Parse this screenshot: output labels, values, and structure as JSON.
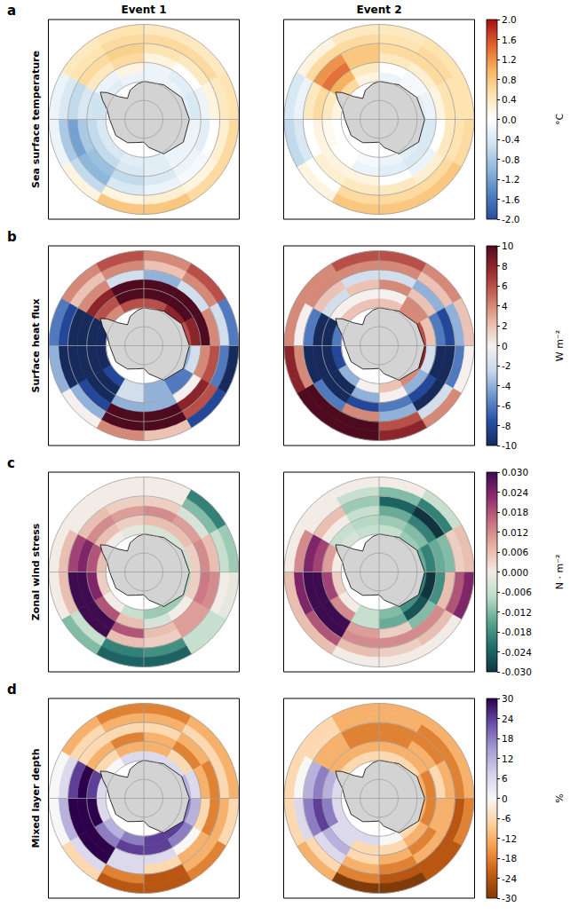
{
  "chart_data": {
    "type": "polar_heatmap",
    "grid": true,
    "columns": [
      "Event 1",
      "Event 2"
    ],
    "lon_edges": [
      0,
      30,
      60,
      90,
      120,
      150,
      180,
      210,
      240,
      270,
      300,
      330,
      360
    ],
    "lat_edges": [
      -70,
      -65,
      -60,
      -55,
      -50,
      -45,
      -40
    ],
    "rlim": [
      -90,
      -40
    ],
    "meridians": [
      0,
      90,
      180,
      270
    ],
    "parallels": [
      -80,
      -70,
      -60,
      -50,
      -40
    ],
    "rows": [
      {
        "letter": "a",
        "label": "Sea surface temperature",
        "unit": "°C",
        "colorbar": {
          "range": [
            -2,
            2
          ],
          "ticks": [
            {
              "value": -2,
              "label": "-2.0"
            },
            -1.6,
            -1.2,
            -0.8,
            -0.4,
            {
              "value": 0,
              "label": "0.0"
            },
            0.4,
            0.8,
            1.2,
            1.6,
            {
              "value": 2,
              "label": "2.0"
            }
          ],
          "colors": [
            "#2b4c9c",
            "#4f80c0",
            "#8fb7dc",
            "#cfe3f0",
            "#ffffff",
            "#fde4b0",
            "#f6b35e",
            "#e0622e",
            "#a50f15"
          ]
        },
        "cells": [
          [
            [
              -0.2,
              -0.2,
              -0.3,
              -0.2,
              -0.2,
              -0.3,
              -0.3,
              -0.4,
              -0.4,
              -0.5,
              -0.3,
              -0.2
            ],
            [
              -0.2,
              -0.3,
              -0.4,
              -0.2,
              -0.2,
              -0.3,
              -0.4,
              -0.6,
              -0.6,
              -0.5,
              -0.2,
              0.2
            ],
            [
              0.2,
              0.0,
              -0.2,
              -0.3,
              -0.2,
              -0.4,
              -0.6,
              -0.9,
              -0.8,
              -0.4,
              0.4,
              0.6
            ],
            [
              0.5,
              0.4,
              0.2,
              0.0,
              -0.1,
              -0.2,
              -0.4,
              -1.0,
              -1.2,
              -0.6,
              0.6,
              0.7
            ],
            [
              0.6,
              0.6,
              0.4,
              0.3,
              0.2,
              0.3,
              0.2,
              -0.6,
              -0.8,
              -0.4,
              0.5,
              0.6
            ],
            [
              0.4,
              0.4,
              0.5,
              0.6,
              0.6,
              0.8,
              0.8,
              0.2,
              -0.2,
              -0.2,
              0.4,
              0.5
            ]
          ],
          [
            [
              -0.2,
              -0.1,
              -0.3,
              -0.4,
              -0.3,
              -0.2,
              -0.1,
              0.0,
              0.0,
              0.2,
              0.6,
              0.2
            ],
            [
              0.0,
              -0.1,
              -0.2,
              -0.4,
              -0.4,
              -0.3,
              -0.2,
              0.0,
              0.1,
              0.4,
              1.0,
              0.4
            ],
            [
              0.4,
              0.3,
              0.2,
              0.0,
              -0.2,
              0.0,
              0.2,
              0.2,
              0.2,
              0.6,
              1.4,
              0.8
            ],
            [
              0.6,
              0.6,
              0.5,
              0.4,
              0.3,
              0.4,
              0.4,
              0.3,
              0.0,
              0.4,
              1.2,
              0.8
            ],
            [
              0.5,
              0.6,
              0.5,
              0.5,
              0.6,
              0.6,
              0.6,
              0.0,
              -0.4,
              -0.2,
              0.6,
              0.6
            ],
            [
              0.4,
              0.5,
              0.5,
              0.6,
              0.8,
              0.8,
              0.8,
              0.2,
              -0.6,
              -0.4,
              0.2,
              0.4
            ]
          ]
        ]
      },
      {
        "letter": "b",
        "label": "Surface heat flux",
        "unit": "W m⁻²",
        "colorbar": {
          "range": [
            -10,
            10
          ],
          "ticks": [
            -10,
            -8,
            -6,
            -4,
            -2,
            0,
            2,
            4,
            6,
            8,
            10
          ],
          "colors": [
            "#172a5c",
            "#2650a8",
            "#6e96cc",
            "#c9d9ea",
            "#f5f0ee",
            "#e8b7a5",
            "#c96a5a",
            "#9a2a2e",
            "#4e0a1e"
          ]
        },
        "cells": [
          [
            [
              6,
              8,
              6,
              -4,
              -6,
              -4,
              -2,
              -8,
              -10,
              -10,
              4,
              6
            ],
            [
              10,
              10,
              8,
              -2,
              -6,
              -4,
              -2,
              -10,
              -10,
              -10,
              6,
              10
            ],
            [
              10,
              10,
              10,
              4,
              0,
              -4,
              -4,
              -10,
              -10,
              -10,
              8,
              10
            ],
            [
              -4,
              -2,
              4,
              6,
              8,
              10,
              10,
              -8,
              -10,
              -10,
              4,
              -2
            ],
            [
              2,
              4,
              -2,
              -6,
              6,
              10,
              10,
              -4,
              -10,
              -8,
              2,
              4
            ],
            [
              4,
              6,
              -6,
              -10,
              -8,
              2,
              4,
              0,
              -4,
              -6,
              4,
              6
            ]
          ],
          [
            [
              2,
              4,
              6,
              8,
              4,
              2,
              0,
              -4,
              -8,
              -6,
              2,
              2
            ],
            [
              0,
              4,
              2,
              -2,
              -4,
              0,
              -4,
              -10,
              -10,
              -10,
              0,
              0
            ],
            [
              4,
              2,
              -6,
              -10,
              -8,
              -6,
              -8,
              -10,
              -10,
              -10,
              -2,
              2
            ],
            [
              -2,
              -4,
              -8,
              -10,
              -10,
              -4,
              4,
              -6,
              -10,
              -6,
              2,
              -2
            ],
            [
              4,
              2,
              -4,
              -6,
              -2,
              6,
              10,
              10,
              4,
              0,
              4,
              4
            ],
            [
              6,
              4,
              2,
              0,
              4,
              8,
              10,
              10,
              8,
              4,
              4,
              6
            ]
          ]
        ]
      },
      {
        "letter": "c",
        "label": "Zonal wind stress",
        "unit": "N · m⁻²",
        "colorbar": {
          "range": [
            -0.03,
            0.03
          ],
          "ticks": [
            {
              "value": -0.03,
              "label": "-0.030"
            },
            -0.024,
            -0.018,
            -0.012,
            -0.006,
            {
              "value": 0,
              "label": "0.000"
            },
            0.006,
            0.012,
            0.018,
            0.024,
            {
              "value": 0.03,
              "label": "0.030"
            }
          ],
          "colors": [
            "#10353f",
            "#1f6f6b",
            "#5ba58f",
            "#bcdcc8",
            "#f3ece6",
            "#e7b4a4",
            "#c8707f",
            "#8e2c6e",
            "#3e0c4e"
          ]
        },
        "cells": [
          [
            [
              -0.004,
              -0.004,
              -0.006,
              -0.008,
              -0.01,
              -0.01,
              -0.006,
              0.0,
              0.004,
              0.006,
              0.0,
              -0.002
            ],
            [
              0.006,
              0.006,
              0.004,
              0.004,
              0.0,
              -0.004,
              0.006,
              0.018,
              0.024,
              0.018,
              0.006,
              0.004
            ],
            [
              0.012,
              0.01,
              0.012,
              0.014,
              0.01,
              0.006,
              0.018,
              0.03,
              0.03,
              0.024,
              0.012,
              0.01
            ],
            [
              0.004,
              -0.004,
              0.006,
              0.012,
              0.01,
              0.004,
              0.006,
              0.03,
              0.03,
              0.02,
              0.006,
              0.004
            ],
            [
              0.0,
              -0.012,
              -0.006,
              0.0,
              -0.006,
              -0.018,
              -0.02,
              -0.006,
              0.006,
              0.006,
              0.0,
              0.0
            ],
            [
              0.0,
              -0.02,
              -0.01,
              -0.002,
              -0.006,
              -0.024,
              -0.024,
              -0.012,
              0.0,
              0.0,
              0.0,
              0.0
            ]
          ],
          [
            [
              -0.006,
              -0.01,
              -0.014,
              -0.02,
              -0.018,
              -0.012,
              -0.006,
              0.0,
              0.004,
              0.0,
              -0.004,
              -0.006
            ],
            [
              -0.01,
              -0.012,
              -0.02,
              -0.03,
              -0.026,
              -0.014,
              -0.006,
              0.012,
              0.02,
              0.01,
              -0.006,
              -0.008
            ],
            [
              -0.014,
              -0.02,
              -0.014,
              -0.018,
              -0.012,
              0.004,
              0.01,
              0.03,
              0.03,
              0.02,
              0.0,
              -0.006
            ],
            [
              -0.024,
              -0.03,
              -0.012,
              0.006,
              0.012,
              0.012,
              0.012,
              0.03,
              0.03,
              0.024,
              0.006,
              -0.01
            ],
            [
              -0.012,
              -0.02,
              0.004,
              0.018,
              0.006,
              0.004,
              0.006,
              0.018,
              0.024,
              0.012,
              0.0,
              -0.006
            ],
            [
              0.0,
              -0.006,
              0.006,
              0.024,
              0.0,
              0.0,
              0.0,
              0.006,
              0.006,
              0.0,
              0.0,
              0.0
            ]
          ]
        ]
      },
      {
        "letter": "d",
        "label": "Mixed layer depth",
        "unit": "%",
        "colorbar": {
          "range": [
            -30,
            30
          ],
          "ticks": [
            -30,
            -24,
            -18,
            -12,
            -6,
            0,
            6,
            12,
            18,
            24,
            30
          ],
          "colors": [
            "#7f3b08",
            "#c65d14",
            "#f29b49",
            "#fdd2a0",
            "#f7f7f7",
            "#d5d1ea",
            "#a49bd1",
            "#6a4fab",
            "#2d004b"
          ]
        },
        "cells": [
          [
            [
              6,
              6,
              12,
              18,
              24,
              24,
              18,
              12,
              6,
              6,
              0,
              6
            ],
            [
              -12,
              -6,
              6,
              12,
              18,
              24,
              24,
              18,
              30,
              24,
              -6,
              -12
            ],
            [
              -12,
              -18,
              -12,
              -6,
              0,
              6,
              6,
              30,
              30,
              30,
              -12,
              -18
            ],
            [
              -6,
              -12,
              -18,
              -18,
              -12,
              -6,
              6,
              30,
              30,
              24,
              -6,
              -6
            ],
            [
              -12,
              -6,
              -6,
              -12,
              -12,
              -24,
              -18,
              6,
              12,
              6,
              -6,
              -12
            ],
            [
              -18,
              -12,
              -12,
              -6,
              -18,
              -24,
              -24,
              -6,
              0,
              0,
              -12,
              -18
            ]
          ],
          [
            [
              -6,
              -6,
              -12,
              -12,
              -6,
              0,
              6,
              6,
              6,
              6,
              -6,
              -6
            ],
            [
              -12,
              -12,
              -18,
              -18,
              -12,
              -6,
              -6,
              6,
              18,
              12,
              -12,
              -12
            ],
            [
              -18,
              -12,
              -6,
              -12,
              -18,
              -12,
              -6,
              12,
              24,
              18,
              -12,
              -18
            ],
            [
              -18,
              -18,
              -12,
              -12,
              -12,
              -18,
              -12,
              6,
              18,
              12,
              -12,
              -18
            ],
            [
              -12,
              -18,
              -18,
              -24,
              -24,
              -24,
              -18,
              -6,
              6,
              0,
              -6,
              -12
            ],
            [
              -12,
              -12,
              -12,
              -18,
              -24,
              -30,
              -30,
              -12,
              -6,
              -6,
              -6,
              -12
            ]
          ]
        ]
      }
    ]
  }
}
